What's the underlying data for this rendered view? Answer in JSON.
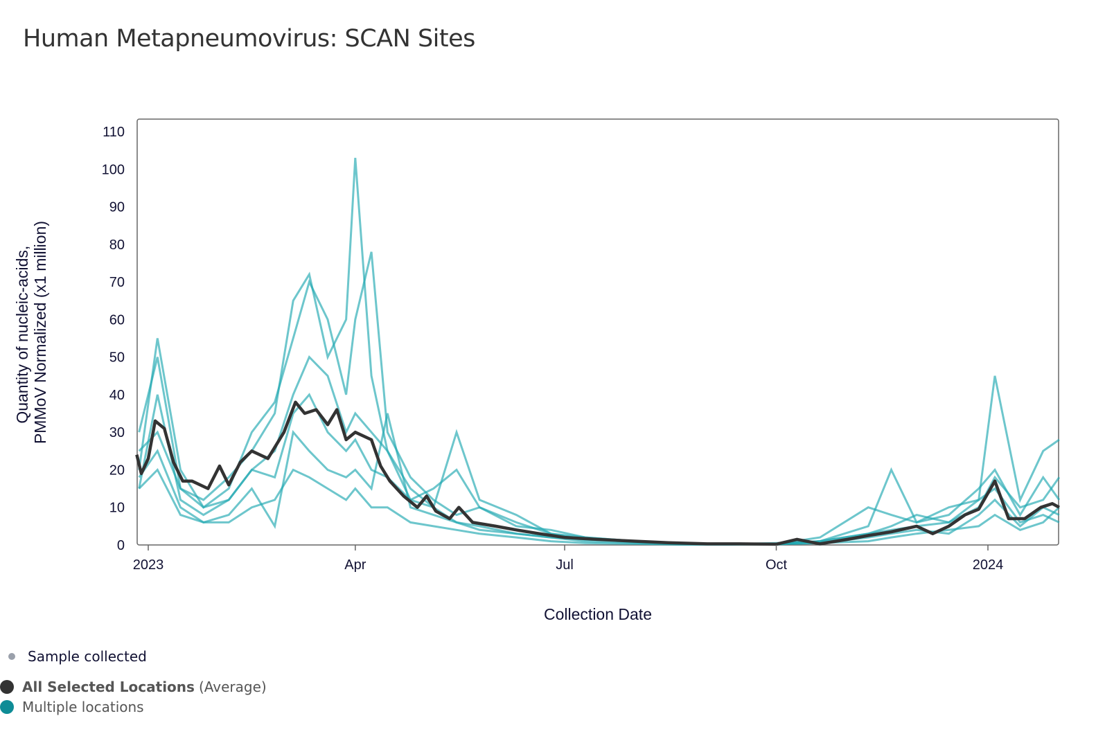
{
  "title": "Human Metapneumovirus: SCAN Sites",
  "legend": {
    "sample_collected": "Sample collected",
    "average_bold": "All Selected Locations",
    "average_suffix": "(Average)",
    "locations": "Multiple locations"
  },
  "colors": {
    "average": "#333333",
    "locations": "#1fa7b1",
    "sample_dot": "#9aa0ab",
    "text": "#111133"
  },
  "chart_data": {
    "type": "line",
    "xlabel": "Collection Date",
    "ylabel_lines": [
      "Quantity of nucleic-acids,",
      "PMMoV Normalized (x1 million)"
    ],
    "xlim": [
      "2022-12-27",
      "2024-02-01"
    ],
    "ylim": [
      0,
      110
    ],
    "y_ticks": [
      0,
      10,
      20,
      30,
      40,
      50,
      60,
      70,
      80,
      90,
      100,
      110
    ],
    "x_ticks": [
      {
        "date": "2023-01-01",
        "label": "2023"
      },
      {
        "date": "2023-04-01",
        "label": "Apr"
      },
      {
        "date": "2023-07-01",
        "label": "Jul"
      },
      {
        "date": "2023-10-01",
        "label": "Oct"
      },
      {
        "date": "2024-01-01",
        "label": "2024"
      }
    ],
    "grid": false,
    "legend_placement": "bottom-left",
    "average": {
      "name": "All Selected Locations (Average)",
      "x": [
        "2022-12-27",
        "2022-12-29",
        "2023-01-01",
        "2023-01-04",
        "2023-01-08",
        "2023-01-12",
        "2023-01-16",
        "2023-01-20",
        "2023-01-27",
        "2023-02-01",
        "2023-02-05",
        "2023-02-10",
        "2023-02-15",
        "2023-02-22",
        "2023-03-01",
        "2023-03-06",
        "2023-03-10",
        "2023-03-15",
        "2023-03-20",
        "2023-03-24",
        "2023-03-28",
        "2023-04-01",
        "2023-04-08",
        "2023-04-12",
        "2023-04-16",
        "2023-04-22",
        "2023-04-28",
        "2023-05-02",
        "2023-05-06",
        "2023-05-12",
        "2023-05-16",
        "2023-05-22",
        "2023-06-01",
        "2023-06-10",
        "2023-06-20",
        "2023-07-01",
        "2023-07-15",
        "2023-08-01",
        "2023-08-15",
        "2023-09-01",
        "2023-09-15",
        "2023-10-01",
        "2023-10-10",
        "2023-10-20",
        "2023-11-01",
        "2023-11-10",
        "2023-11-20",
        "2023-12-01",
        "2023-12-08",
        "2023-12-15",
        "2023-12-22",
        "2023-12-28",
        "2024-01-04",
        "2024-01-10",
        "2024-01-17",
        "2024-01-24",
        "2024-01-29",
        "2024-02-01"
      ],
      "y": [
        24,
        19,
        23,
        33,
        31,
        22,
        17,
        17,
        15,
        21,
        16,
        22,
        25,
        23,
        30,
        38,
        35,
        36,
        32,
        36,
        28,
        30,
        28,
        21,
        17,
        13,
        10,
        13,
        9,
        7,
        10,
        6,
        5,
        4,
        3,
        2,
        1.5,
        1,
        0.6,
        0.3,
        0.3,
        0.2,
        1.5,
        0.3,
        1.5,
        2.5,
        3.5,
        5,
        3,
        5,
        8,
        9.5,
        17,
        7,
        7,
        10,
        11,
        10
      ]
    },
    "locations": {
      "name": "Multiple locations",
      "x": [
        "2022-12-28",
        "2023-01-05",
        "2023-01-15",
        "2023-01-25",
        "2023-02-05",
        "2023-02-15",
        "2023-02-25",
        "2023-03-05",
        "2023-03-12",
        "2023-03-20",
        "2023-03-28",
        "2023-04-01",
        "2023-04-08",
        "2023-04-15",
        "2023-04-25",
        "2023-05-05",
        "2023-05-15",
        "2023-05-25",
        "2023-06-10",
        "2023-06-25",
        "2023-07-10",
        "2023-08-01",
        "2023-08-20",
        "2023-09-10",
        "2023-10-01",
        "2023-10-20",
        "2023-11-10",
        "2023-11-20",
        "2023-12-01",
        "2023-12-15",
        "2023-12-28",
        "2024-01-04",
        "2024-01-15",
        "2024-01-25",
        "2024-02-01"
      ],
      "series": [
        [
          30,
          50,
          15,
          12,
          18,
          25,
          35,
          65,
          72,
          50,
          60,
          103,
          45,
          25,
          15,
          10,
          30,
          12,
          8,
          3,
          2,
          1,
          0.5,
          0.3,
          0.2,
          1,
          5,
          20,
          6,
          10,
          12,
          45,
          12,
          25,
          28
        ],
        [
          20,
          55,
          20,
          10,
          15,
          30,
          38,
          55,
          70,
          60,
          40,
          60,
          78,
          30,
          18,
          12,
          8,
          10,
          5,
          4,
          2,
          1,
          0.5,
          0.2,
          0.3,
          2,
          10,
          8,
          6,
          8,
          15,
          20,
          8,
          18,
          12
        ],
        [
          15,
          40,
          12,
          8,
          12,
          20,
          25,
          40,
          50,
          45,
          30,
          35,
          30,
          25,
          12,
          15,
          20,
          10,
          6,
          3,
          1.5,
          1,
          0.3,
          0.2,
          0.1,
          1,
          3,
          4,
          5,
          6,
          10,
          18,
          10,
          12,
          18
        ],
        [
          18,
          25,
          10,
          6,
          8,
          15,
          5,
          30,
          25,
          20,
          18,
          20,
          15,
          35,
          10,
          8,
          6,
          4,
          3,
          2,
          1,
          0.5,
          0.2,
          0.1,
          0.2,
          0.5,
          2,
          3,
          4,
          3,
          8,
          12,
          5,
          10,
          8
        ],
        [
          25,
          30,
          15,
          10,
          12,
          20,
          18,
          35,
          40,
          30,
          25,
          28,
          20,
          18,
          12,
          10,
          6,
          5,
          3,
          2,
          1.5,
          0.8,
          0.3,
          0.2,
          0.5,
          1,
          3,
          5,
          8,
          6,
          12,
          15,
          6,
          8,
          6
        ],
        [
          15,
          20,
          8,
          6,
          6,
          10,
          12,
          20,
          18,
          15,
          12,
          15,
          10,
          10,
          6,
          5,
          4,
          3,
          2,
          1,
          0.5,
          0.3,
          0.1,
          0.1,
          0.3,
          0.5,
          1,
          2,
          3,
          4,
          5,
          8,
          4,
          6,
          10
        ]
      ]
    }
  }
}
